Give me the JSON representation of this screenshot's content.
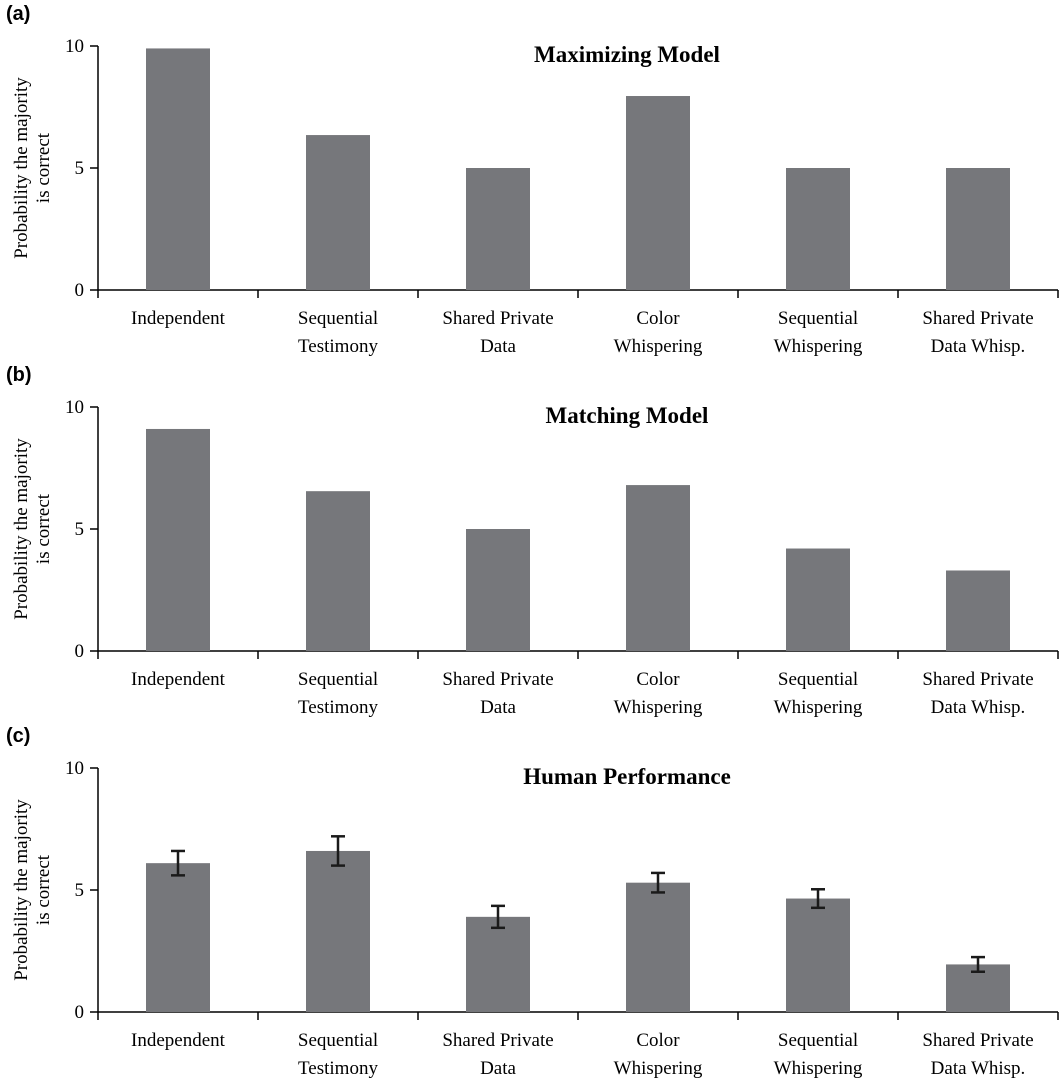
{
  "chart_data": [
    {
      "type": "bar",
      "panel": "(a)",
      "title": "Maximizing Model",
      "ylabel": [
        "Probability the majority",
        "is correct"
      ],
      "ylim": [
        0,
        10
      ],
      "yticks": [
        0,
        5,
        10
      ],
      "categories": [
        [
          "Independent"
        ],
        [
          "Sequential",
          "Testimony"
        ],
        [
          "Shared Private",
          "Data"
        ],
        [
          "Color",
          "Whispering"
        ],
        [
          "Sequential",
          "Whispering"
        ],
        [
          "Shared Private",
          "Data Whisp."
        ]
      ],
      "values": [
        9.9,
        6.35,
        5.0,
        7.95,
        5.0,
        5.0
      ],
      "bar_color": "#76777b"
    },
    {
      "type": "bar",
      "panel": "(b)",
      "title": "Matching Model",
      "ylabel": [
        "Probability the majority",
        "is correct"
      ],
      "ylim": [
        0,
        10
      ],
      "yticks": [
        0,
        5,
        10
      ],
      "categories": [
        [
          "Independent"
        ],
        [
          "Sequential",
          "Testimony"
        ],
        [
          "Shared Private",
          "Data"
        ],
        [
          "Color",
          "Whispering"
        ],
        [
          "Sequential",
          "Whispering"
        ],
        [
          "Shared Private",
          "Data Whisp."
        ]
      ],
      "values": [
        9.1,
        6.55,
        5.0,
        6.8,
        4.2,
        3.3
      ],
      "bar_color": "#76777b"
    },
    {
      "type": "bar",
      "panel": "(c)",
      "title": "Human Performance",
      "ylabel": [
        "Probability the majority",
        "is correct"
      ],
      "ylim": [
        0,
        10
      ],
      "yticks": [
        0,
        5,
        10
      ],
      "categories": [
        [
          "Independent"
        ],
        [
          "Sequential",
          "Testimony"
        ],
        [
          "Shared Private",
          "Data"
        ],
        [
          "Color",
          "Whispering"
        ],
        [
          "Sequential",
          "Whispering"
        ],
        [
          "Shared Private",
          "Data Whisp."
        ]
      ],
      "values": [
        6.1,
        6.6,
        3.9,
        5.3,
        4.65,
        1.95
      ],
      "error_bars": [
        0.5,
        0.6,
        0.45,
        0.4,
        0.38,
        0.3
      ],
      "bar_color": "#76777b"
    }
  ]
}
